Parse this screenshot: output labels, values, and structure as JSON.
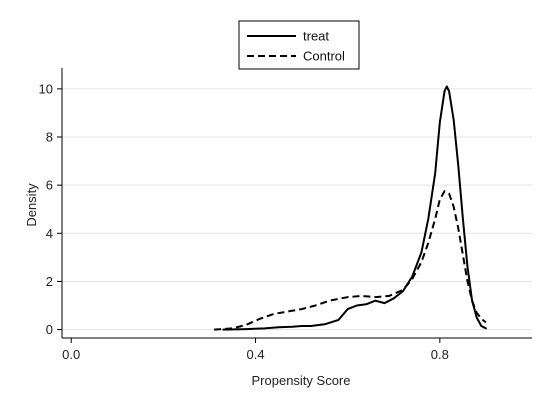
{
  "chart_data": {
    "type": "line",
    "title": "",
    "xlabel": "Propensity Score",
    "ylabel": "Density",
    "xlim": [
      -0.02,
      1.0
    ],
    "ylim": [
      -0.35,
      10.7
    ],
    "x_ticks": [
      0.0,
      0.4,
      0.8
    ],
    "x_tick_labels": [
      "0.0",
      "0.4",
      "0.8"
    ],
    "y_ticks": [
      0,
      2,
      4,
      6,
      8,
      10
    ],
    "y_tick_labels": [
      "0",
      "2",
      "4",
      "6",
      "8",
      "10"
    ],
    "grid": "horizontal",
    "legend": {
      "position": "top-center"
    },
    "series": [
      {
        "name": "treat",
        "style": "solid",
        "color": "#000000",
        "points": [
          [
            0.33,
            0.0
          ],
          [
            0.38,
            0.02
          ],
          [
            0.42,
            0.05
          ],
          [
            0.45,
            0.1
          ],
          [
            0.48,
            0.12
          ],
          [
            0.5,
            0.15
          ],
          [
            0.52,
            0.15
          ],
          [
            0.55,
            0.22
          ],
          [
            0.58,
            0.4
          ],
          [
            0.6,
            0.85
          ],
          [
            0.62,
            1.0
          ],
          [
            0.64,
            1.05
          ],
          [
            0.66,
            1.2
          ],
          [
            0.68,
            1.1
          ],
          [
            0.7,
            1.3
          ],
          [
            0.72,
            1.6
          ],
          [
            0.74,
            2.2
          ],
          [
            0.76,
            3.2
          ],
          [
            0.775,
            4.6
          ],
          [
            0.79,
            6.5
          ],
          [
            0.8,
            8.6
          ],
          [
            0.81,
            9.9
          ],
          [
            0.815,
            10.1
          ],
          [
            0.82,
            9.9
          ],
          [
            0.83,
            8.7
          ],
          [
            0.84,
            6.8
          ],
          [
            0.85,
            4.6
          ],
          [
            0.86,
            2.6
          ],
          [
            0.87,
            1.2
          ],
          [
            0.88,
            0.5
          ],
          [
            0.89,
            0.15
          ],
          [
            0.9,
            0.05
          ]
        ]
      },
      {
        "name": "Control",
        "style": "dashed",
        "color": "#000000",
        "points": [
          [
            0.31,
            0.0
          ],
          [
            0.35,
            0.05
          ],
          [
            0.38,
            0.2
          ],
          [
            0.41,
            0.45
          ],
          [
            0.44,
            0.65
          ],
          [
            0.47,
            0.75
          ],
          [
            0.5,
            0.85
          ],
          [
            0.53,
            1.0
          ],
          [
            0.56,
            1.2
          ],
          [
            0.6,
            1.35
          ],
          [
            0.63,
            1.4
          ],
          [
            0.66,
            1.35
          ],
          [
            0.69,
            1.4
          ],
          [
            0.72,
            1.65
          ],
          [
            0.74,
            2.1
          ],
          [
            0.76,
            2.8
          ],
          [
            0.775,
            3.6
          ],
          [
            0.79,
            4.6
          ],
          [
            0.8,
            5.4
          ],
          [
            0.81,
            5.75
          ],
          [
            0.82,
            5.65
          ],
          [
            0.83,
            5.1
          ],
          [
            0.84,
            4.2
          ],
          [
            0.85,
            3.1
          ],
          [
            0.86,
            2.0
          ],
          [
            0.87,
            1.2
          ],
          [
            0.88,
            0.7
          ],
          [
            0.89,
            0.45
          ],
          [
            0.9,
            0.3
          ]
        ]
      }
    ]
  }
}
